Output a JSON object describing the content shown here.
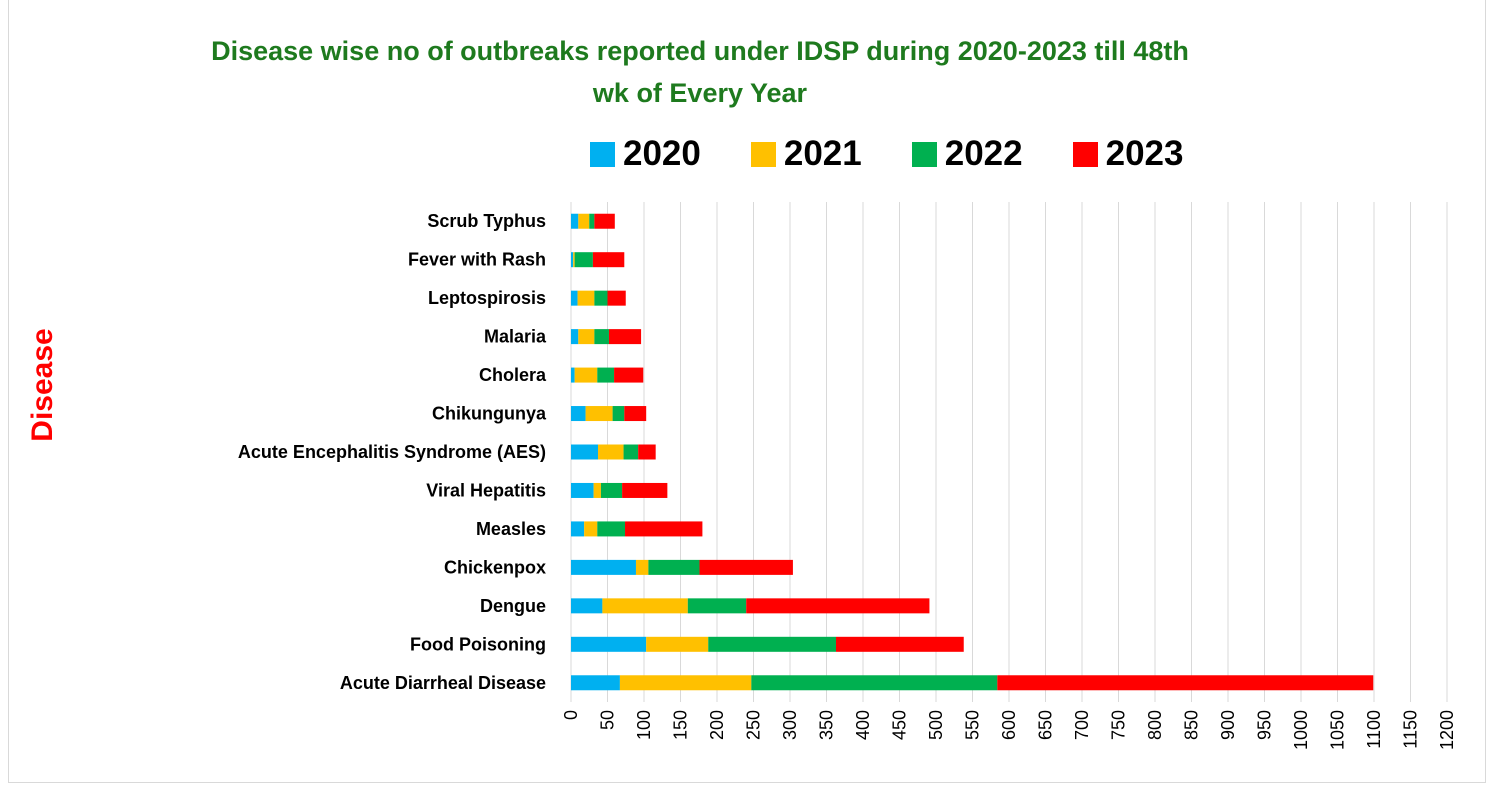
{
  "chart_data": {
    "type": "bar",
    "orientation": "horizontal",
    "stacked": true,
    "title": "Disease wise no of outbreaks reported under IDSP during  2020-2023 till 48th wk of Every Year",
    "ylabel": "Disease",
    "xlabel": "",
    "xlim": [
      0,
      1200
    ],
    "x_ticks": [
      0,
      50,
      100,
      150,
      200,
      250,
      300,
      350,
      400,
      450,
      500,
      550,
      600,
      650,
      700,
      750,
      800,
      850,
      900,
      950,
      1000,
      1050,
      1100,
      1150,
      1200
    ],
    "grid": true,
    "legend_position": "top",
    "categories": [
      "Scrub Typhus",
      "Fever with Rash",
      "Leptospirosis",
      "Malaria",
      "Cholera",
      "Chikungunya",
      "Acute Encephalitis Syndrome (AES)",
      "Viral Hepatitis",
      "Measles",
      "Chickenpox",
      "Dengue",
      "Food Poisoning",
      "Acute Diarrheal Disease"
    ],
    "series": [
      {
        "name": "2020",
        "color": "#00b0f0",
        "values": [
          10,
          3,
          9,
          10,
          5,
          20,
          37,
          31,
          18,
          89,
          43,
          103,
          67
        ]
      },
      {
        "name": "2021",
        "color": "#ffc000",
        "values": [
          15,
          2,
          23,
          22,
          31,
          37,
          35,
          10,
          18,
          17,
          117,
          85,
          180
        ]
      },
      {
        "name": "2022",
        "color": "#00b050",
        "values": [
          7,
          25,
          18,
          20,
          23,
          16,
          20,
          29,
          38,
          70,
          80,
          175,
          337
        ]
      },
      {
        "name": "2023",
        "color": "#ff0000",
        "values": [
          28,
          43,
          25,
          44,
          40,
          30,
          24,
          62,
          106,
          128,
          251,
          175,
          515
        ]
      }
    ]
  }
}
